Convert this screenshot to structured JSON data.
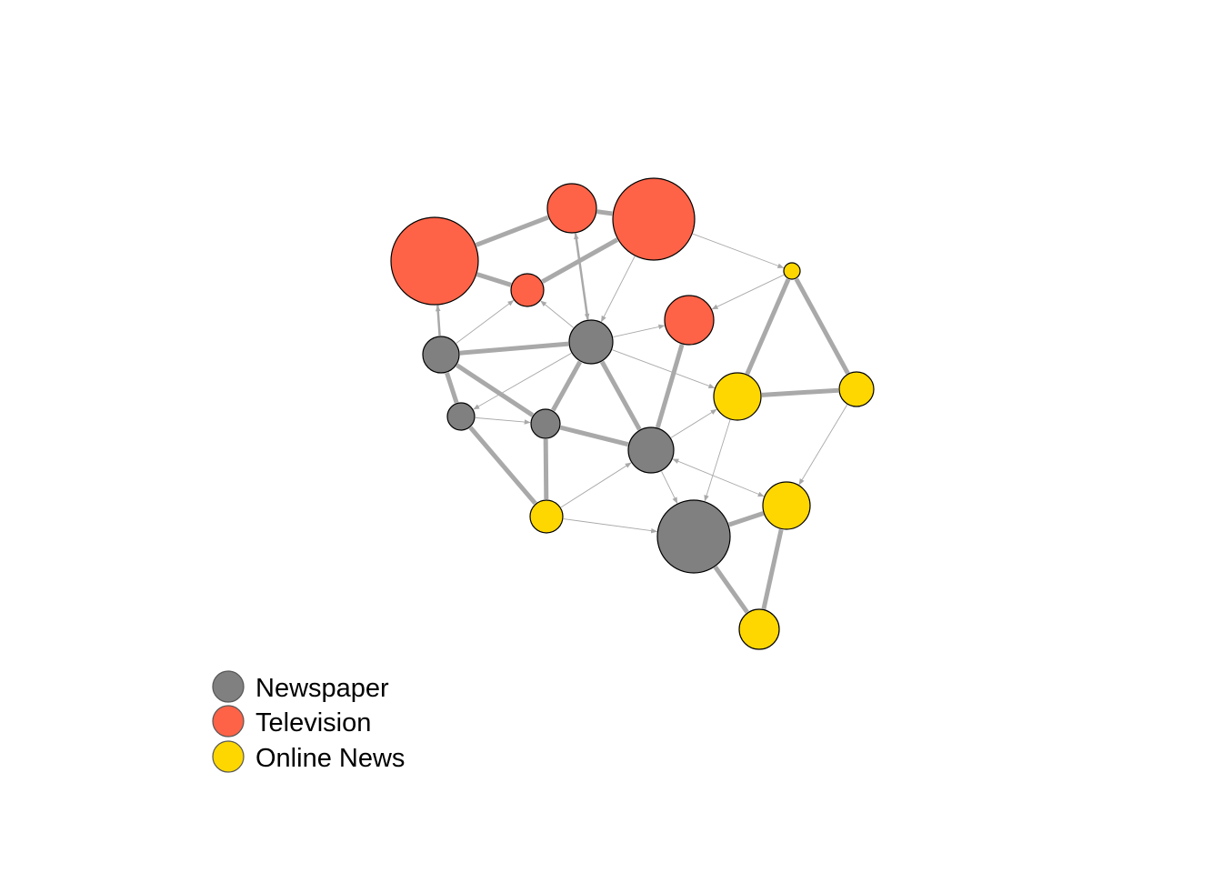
{
  "legend": {
    "items": [
      {
        "label": "Newspaper",
        "type": "newspaper"
      },
      {
        "label": "Television",
        "type": "television"
      },
      {
        "label": "Online News",
        "type": "online"
      }
    ]
  },
  "type_colors": {
    "newspaper": "#808080",
    "television": "#FF6347",
    "online": "#FFD700"
  },
  "edge_color": "#A9A9A9",
  "nodes": [
    {
      "id": "tv1",
      "type": "television",
      "audience": 48
    },
    {
      "id": "tv2",
      "type": "television",
      "audience": 27
    },
    {
      "id": "tv3",
      "type": "television",
      "audience": 45
    },
    {
      "id": "tv4",
      "type": "television",
      "audience": 18
    },
    {
      "id": "tv5",
      "type": "television",
      "audience": 27
    },
    {
      "id": "np1",
      "type": "newspaper",
      "audience": 24
    },
    {
      "id": "np2",
      "type": "newspaper",
      "audience": 20
    },
    {
      "id": "np3",
      "type": "newspaper",
      "audience": 15
    },
    {
      "id": "np4",
      "type": "newspaper",
      "audience": 16
    },
    {
      "id": "np5",
      "type": "newspaper",
      "audience": 25
    },
    {
      "id": "np6",
      "type": "newspaper",
      "audience": 40
    },
    {
      "id": "on1",
      "type": "online",
      "audience": 9
    },
    {
      "id": "on2",
      "type": "online",
      "audience": 26
    },
    {
      "id": "on3",
      "type": "online",
      "audience": 18
    },
    {
      "id": "on4",
      "type": "online",
      "audience": 26
    },
    {
      "id": "on5",
      "type": "online",
      "audience": 19
    },
    {
      "id": "on6",
      "type": "online",
      "audience": 22
    }
  ],
  "edges": [
    {
      "from": "tv1",
      "to": "tv2",
      "weight": 4,
      "directed": false
    },
    {
      "from": "tv2",
      "to": "tv3",
      "weight": 4,
      "directed": false
    },
    {
      "from": "tv1",
      "to": "tv4",
      "weight": 4,
      "directed": false
    },
    {
      "from": "tv4",
      "to": "tv3",
      "weight": 4,
      "directed": false
    },
    {
      "from": "tv3",
      "to": "on1",
      "weight": 1,
      "directed": true
    },
    {
      "from": "on1",
      "to": "tv5",
      "weight": 1,
      "directed": true
    },
    {
      "from": "tv2",
      "to": "np1",
      "weight": 2,
      "directed": "both"
    },
    {
      "from": "tv3",
      "to": "np1",
      "weight": 1,
      "directed": true
    },
    {
      "from": "np1",
      "to": "tv4",
      "weight": 1,
      "directed": true
    },
    {
      "from": "np2",
      "to": "tv4",
      "weight": 1,
      "directed": true
    },
    {
      "from": "np2",
      "to": "tv1",
      "weight": 2,
      "directed": true
    },
    {
      "from": "np2",
      "to": "np1",
      "weight": 4,
      "directed": false
    },
    {
      "from": "np1",
      "to": "tv5",
      "weight": 1,
      "directed": true
    },
    {
      "from": "np1",
      "to": "on2",
      "weight": 1,
      "directed": true
    },
    {
      "from": "np1",
      "to": "np3",
      "weight": 1,
      "directed": true
    },
    {
      "from": "np1",
      "to": "np4",
      "weight": 4,
      "directed": false
    },
    {
      "from": "np1",
      "to": "np5",
      "weight": 4,
      "directed": false
    },
    {
      "from": "np2",
      "to": "np3",
      "weight": 4,
      "directed": false
    },
    {
      "from": "np2",
      "to": "np4",
      "weight": 4,
      "directed": false
    },
    {
      "from": "np3",
      "to": "np4",
      "weight": 1,
      "directed": true
    },
    {
      "from": "np3",
      "to": "on3",
      "weight": 4,
      "directed": false
    },
    {
      "from": "np4",
      "to": "on3",
      "weight": 4,
      "directed": false
    },
    {
      "from": "np4",
      "to": "np5",
      "weight": 4,
      "directed": false
    },
    {
      "from": "np5",
      "to": "tv5",
      "weight": 4,
      "directed": false
    },
    {
      "from": "np5",
      "to": "on2",
      "weight": 1,
      "directed": true
    },
    {
      "from": "np5",
      "to": "np6",
      "weight": 1,
      "directed": true
    },
    {
      "from": "np5",
      "to": "on4",
      "weight": 1,
      "directed": "both"
    },
    {
      "from": "on3",
      "to": "np5",
      "weight": 1,
      "directed": true
    },
    {
      "from": "on3",
      "to": "np6",
      "weight": 1,
      "directed": true
    },
    {
      "from": "on1",
      "to": "on2",
      "weight": 4,
      "directed": false
    },
    {
      "from": "on1",
      "to": "on5",
      "weight": 4,
      "directed": false
    },
    {
      "from": "on2",
      "to": "on5",
      "weight": 4,
      "directed": false
    },
    {
      "from": "on2",
      "to": "np6",
      "weight": 1,
      "directed": true
    },
    {
      "from": "on5",
      "to": "on4",
      "weight": 1,
      "directed": true
    },
    {
      "from": "np6",
      "to": "on4",
      "weight": 4,
      "directed": false
    },
    {
      "from": "np6",
      "to": "on6",
      "weight": 4,
      "directed": false
    },
    {
      "from": "on4",
      "to": "on6",
      "weight": 4,
      "directed": false
    }
  ]
}
